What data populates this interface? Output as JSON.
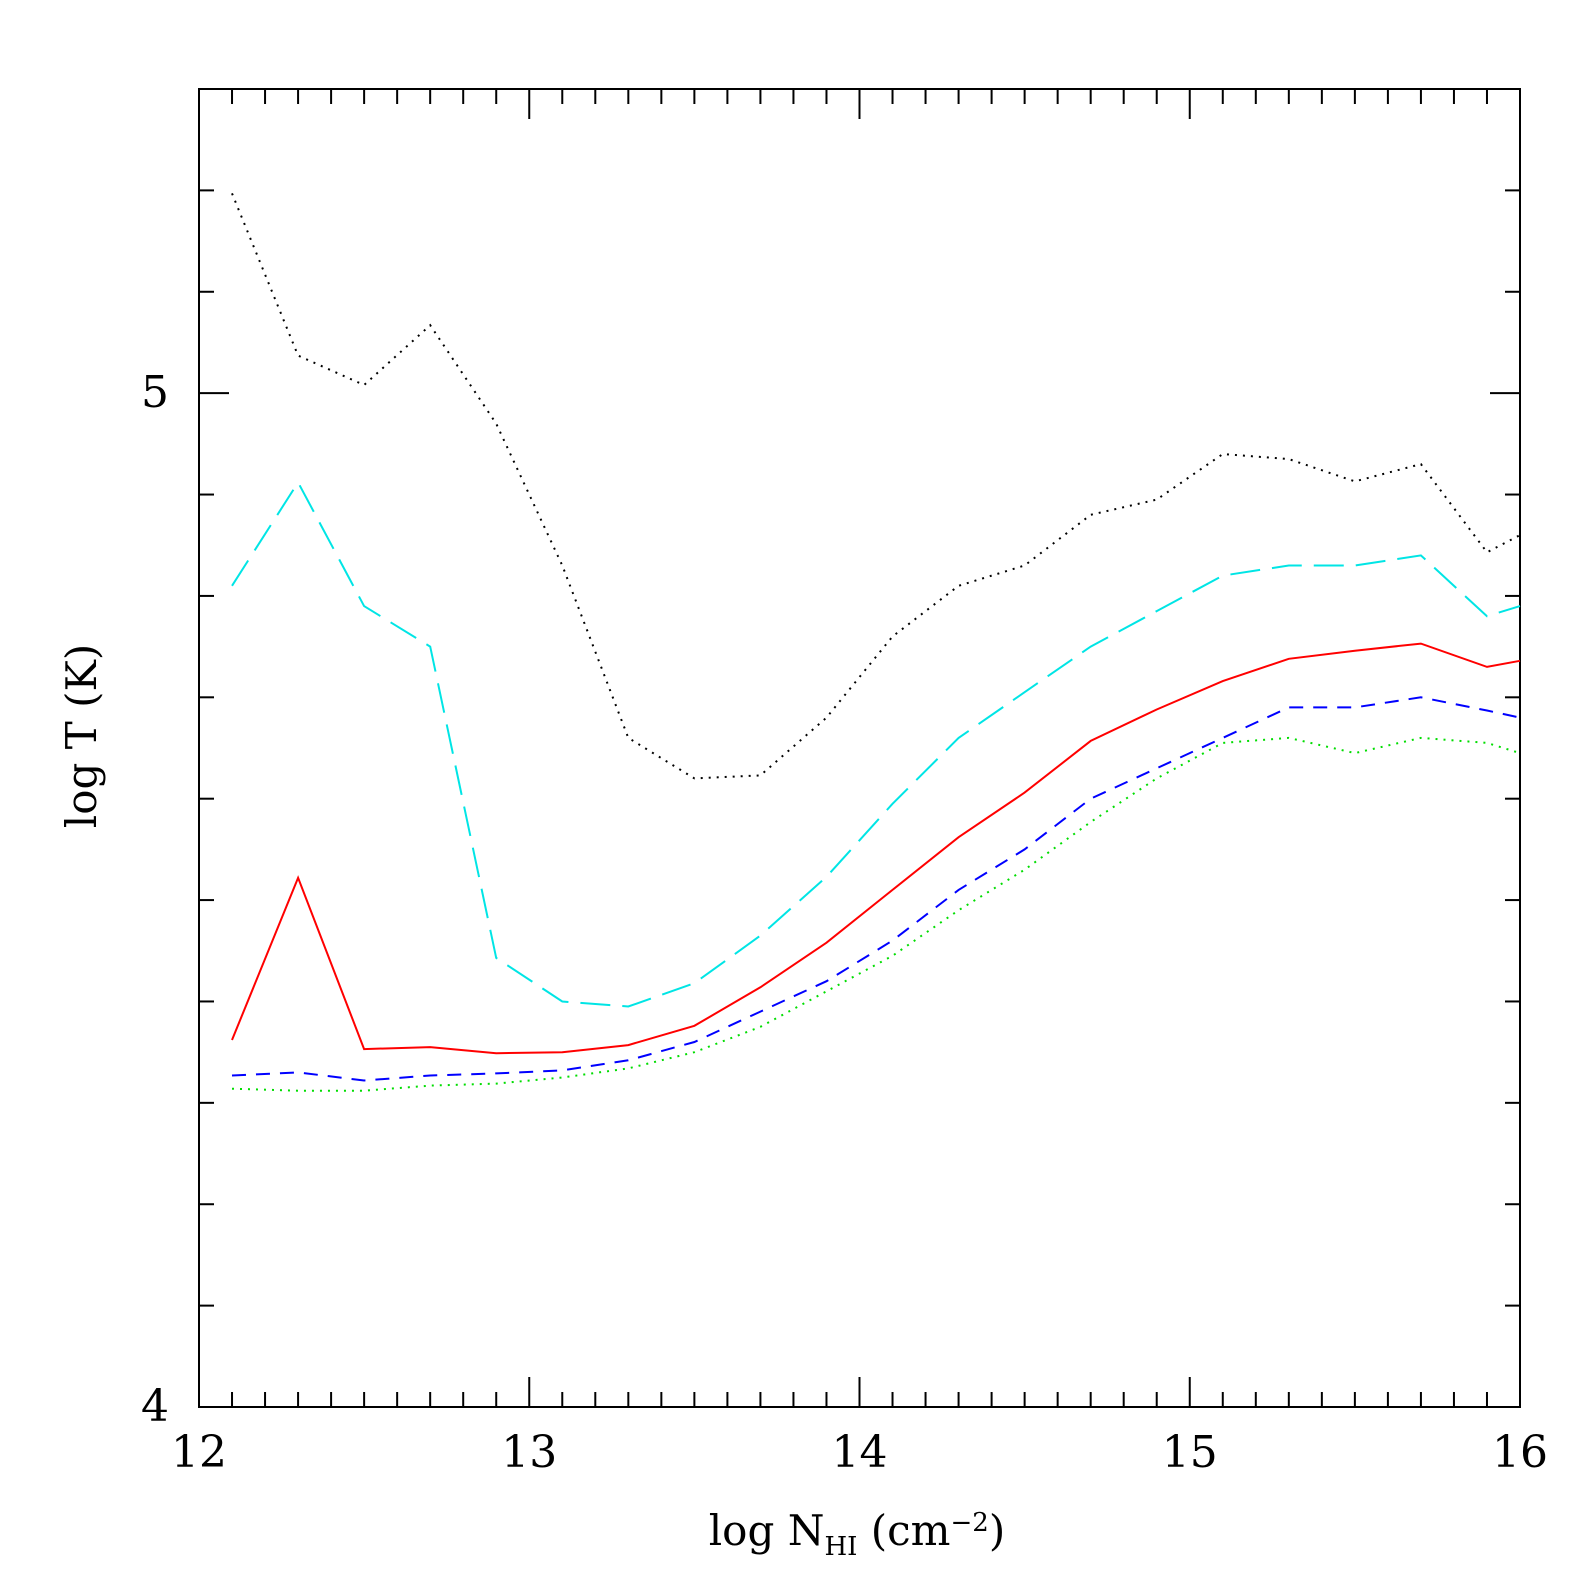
{
  "chart_data": {
    "type": "line",
    "title": "",
    "xlabel": {
      "prefix": "log N",
      "subscript": "HI",
      "unit_open": " (cm",
      "superscript": "−2",
      "unit_close": ")"
    },
    "ylabel": "log T (K)",
    "xlim": [
      12,
      16
    ],
    "ylim": [
      4,
      5.3
    ],
    "x_ticks": [
      {
        "value": 12,
        "label": "12"
      },
      {
        "value": 13,
        "label": "13"
      },
      {
        "value": 14,
        "label": "14"
      },
      {
        "value": 15,
        "label": "15"
      },
      {
        "value": 16,
        "label": "16"
      }
    ],
    "y_ticks": [
      {
        "value": 4,
        "label": "4"
      },
      {
        "value": 5,
        "label": "5"
      }
    ],
    "x_minor_step": 0.1,
    "y_minor_step": 0.1,
    "x": [
      12.1,
      12.3,
      12.5,
      12.7,
      12.9,
      13.1,
      13.3,
      13.5,
      13.7,
      13.9,
      14.1,
      14.3,
      14.5,
      14.7,
      14.9,
      15.1,
      15.3,
      15.5,
      15.7,
      15.9,
      16.0
    ],
    "series": [
      {
        "name": "black-dotted",
        "color": "#000000",
        "dash": "dotted",
        "values": [
          5.197,
          5.037,
          5.008,
          5.067,
          4.97,
          4.83,
          4.66,
          4.62,
          4.623,
          4.68,
          4.76,
          4.81,
          4.83,
          4.88,
          4.895,
          4.94,
          4.935,
          4.913,
          4.93,
          4.843,
          4.86
        ]
      },
      {
        "name": "cyan-dashed",
        "color": "#00e5e5",
        "dash": "longdash",
        "values": [
          4.81,
          4.912,
          4.79,
          4.75,
          4.443,
          4.4,
          4.395,
          4.418,
          4.465,
          4.523,
          4.595,
          4.66,
          4.705,
          4.75,
          4.785,
          4.82,
          4.83,
          4.83,
          4.84,
          4.78,
          4.79
        ]
      },
      {
        "name": "red-solid",
        "color": "#ff0000",
        "dash": "solid",
        "values": [
          4.362,
          4.522,
          4.353,
          4.355,
          4.349,
          4.35,
          4.357,
          4.376,
          4.414,
          4.458,
          4.51,
          4.562,
          4.606,
          4.657,
          4.688,
          4.716,
          4.738,
          4.746,
          4.753,
          4.73,
          4.736
        ]
      },
      {
        "name": "blue-dashed",
        "color": "#0000ff",
        "dash": "dashed",
        "values": [
          4.327,
          4.33,
          4.322,
          4.327,
          4.329,
          4.332,
          4.342,
          4.36,
          4.39,
          4.42,
          4.46,
          4.51,
          4.55,
          4.6,
          4.63,
          4.66,
          4.69,
          4.69,
          4.7,
          4.687,
          4.68
        ]
      },
      {
        "name": "green-dotted",
        "color": "#00dd00",
        "dash": "dotted",
        "values": [
          4.314,
          4.312,
          4.312,
          4.317,
          4.319,
          4.325,
          4.334,
          4.35,
          4.375,
          4.41,
          4.445,
          4.49,
          4.53,
          4.577,
          4.62,
          4.655,
          4.66,
          4.645,
          4.66,
          4.655,
          4.645
        ]
      }
    ],
    "legend": "none",
    "grid": false
  }
}
